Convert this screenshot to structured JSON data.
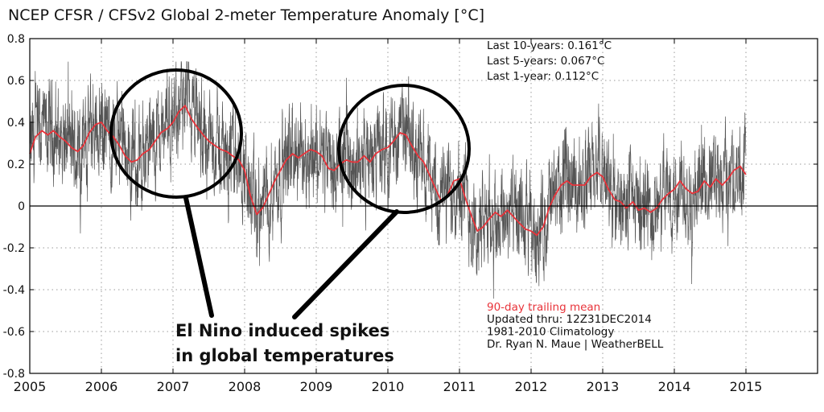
{
  "chart_data": {
    "type": "line",
    "title": "NCEP CFSR / CFSv2 Global 2-meter Temperature Anomaly [°C]",
    "xlabel": "",
    "ylabel": "",
    "xlim": [
      2005,
      2016
    ],
    "ylim": [
      -0.8,
      0.8
    ],
    "x_ticks": [
      "2005",
      "2006",
      "2007",
      "2008",
      "2009",
      "2010",
      "2011",
      "2012",
      "2013",
      "2014",
      "2015"
    ],
    "y_ticks": [
      "0.8",
      "0.6",
      "0.4",
      "0.2",
      "0",
      "-0.2",
      "-0.4",
      "-0.6",
      "-0.8"
    ],
    "grid": true,
    "stats": [
      "Last 10-years: 0.161°C",
      "Last 5-years: 0.067°C",
      "Last 1-year:  0.112°C"
    ],
    "legend": {
      "label": "90-day trailing mean",
      "color": "#e8333a"
    },
    "info": [
      "Updated thru: 12Z31DEC2014",
      "1981-2010 Climatology",
      "Dr. Ryan N. Maue | WeatherBELL"
    ],
    "annotation": {
      "lines": [
        "El Nino induced spikes",
        "in global temperatures"
      ]
    },
    "daily_series_color": "#555555",
    "series": [
      {
        "name": "90-day trailing mean",
        "color": "#e8333a",
        "x": [
          2005.0,
          2005.08,
          2005.17,
          2005.25,
          2005.33,
          2005.42,
          2005.5,
          2005.58,
          2005.67,
          2005.75,
          2005.83,
          2005.92,
          2006.0,
          2006.08,
          2006.17,
          2006.25,
          2006.33,
          2006.42,
          2006.5,
          2006.58,
          2006.67,
          2006.75,
          2006.83,
          2006.92,
          2007.0,
          2007.08,
          2007.17,
          2007.25,
          2007.33,
          2007.42,
          2007.5,
          2007.58,
          2007.67,
          2007.75,
          2007.83,
          2007.92,
          2008.0,
          2008.08,
          2008.17,
          2008.25,
          2008.33,
          2008.42,
          2008.5,
          2008.58,
          2008.67,
          2008.75,
          2008.83,
          2008.92,
          2009.0,
          2009.08,
          2009.17,
          2009.25,
          2009.33,
          2009.42,
          2009.5,
          2009.58,
          2009.67,
          2009.75,
          2009.83,
          2009.92,
          2010.0,
          2010.08,
          2010.17,
          2010.25,
          2010.33,
          2010.42,
          2010.5,
          2010.58,
          2010.67,
          2010.75,
          2010.83,
          2010.92,
          2011.0,
          2011.08,
          2011.17,
          2011.25,
          2011.33,
          2011.42,
          2011.5,
          2011.58,
          2011.67,
          2011.75,
          2011.83,
          2011.92,
          2012.0,
          2012.08,
          2012.17,
          2012.25,
          2012.33,
          2012.42,
          2012.5,
          2012.58,
          2012.67,
          2012.75,
          2012.83,
          2012.92,
          2013.0,
          2013.08,
          2013.17,
          2013.25,
          2013.33,
          2013.42,
          2013.5,
          2013.58,
          2013.67,
          2013.75,
          2013.83,
          2013.92,
          2014.0,
          2014.08,
          2014.17,
          2014.25,
          2014.33,
          2014.42,
          2014.5,
          2014.58,
          2014.67,
          2014.75,
          2014.83,
          2014.92,
          2015.0
        ],
        "values": [
          0.25,
          0.33,
          0.36,
          0.34,
          0.36,
          0.33,
          0.31,
          0.28,
          0.26,
          0.29,
          0.35,
          0.39,
          0.4,
          0.36,
          0.33,
          0.29,
          0.24,
          0.21,
          0.22,
          0.25,
          0.27,
          0.31,
          0.35,
          0.37,
          0.4,
          0.45,
          0.48,
          0.42,
          0.38,
          0.34,
          0.31,
          0.29,
          0.27,
          0.26,
          0.24,
          0.22,
          0.17,
          0.05,
          -0.04,
          -0.01,
          0.05,
          0.12,
          0.17,
          0.22,
          0.25,
          0.23,
          0.25,
          0.27,
          0.26,
          0.24,
          0.18,
          0.17,
          0.2,
          0.22,
          0.21,
          0.21,
          0.24,
          0.21,
          0.25,
          0.27,
          0.28,
          0.31,
          0.35,
          0.34,
          0.29,
          0.24,
          0.21,
          0.15,
          0.08,
          0.02,
          0.05,
          0.12,
          0.13,
          0.04,
          -0.05,
          -0.12,
          -0.1,
          -0.06,
          -0.03,
          -0.05,
          -0.02,
          -0.05,
          -0.08,
          -0.11,
          -0.12,
          -0.14,
          -0.1,
          -0.01,
          0.05,
          0.1,
          0.12,
          0.1,
          0.1,
          0.1,
          0.14,
          0.16,
          0.14,
          0.08,
          0.03,
          0.02,
          -0.01,
          0.02,
          -0.02,
          -0.01,
          -0.03,
          -0.01,
          0.03,
          0.06,
          0.08,
          0.12,
          0.08,
          0.06,
          0.07,
          0.12,
          0.09,
          0.13,
          0.1,
          0.13,
          0.17,
          0.19,
          0.15
        ]
      }
    ]
  }
}
